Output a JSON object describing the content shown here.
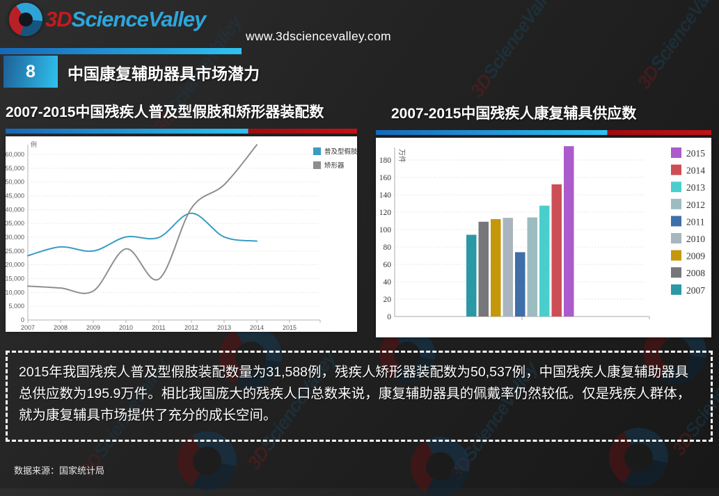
{
  "header": {
    "logo_3d": "3D",
    "logo_name": "ScienceValley",
    "website": "www.3dsciencevalley.com",
    "page_number": "8",
    "page_title": "中国康复辅助器具市场潜力"
  },
  "watermark": {
    "text_3d": "3D",
    "text_name": "ScienceValley"
  },
  "chart_data": [
    {
      "type": "line",
      "title": "2007-2015中国残疾人普及型假肢和矫形器装配数",
      "ylabel": "例",
      "x": [
        2007,
        2008,
        2009,
        2010,
        2011,
        2012,
        2013,
        2014,
        2015
      ],
      "series": [
        {
          "name": "普及型假肢",
          "color": "#3A9CC4",
          "values": [
            23300,
            26500,
            25000,
            30100,
            29900,
            38700,
            30100,
            28600
          ]
        },
        {
          "name": "矫形器",
          "color": "#8E8E8E",
          "values": [
            12300,
            11600,
            10500,
            25800,
            14800,
            40500,
            49000,
            63500
          ]
        }
      ],
      "ylim": [
        0,
        60000
      ],
      "ytick": 5000,
      "grid": true,
      "legend_position": "top-right",
      "note": "curves plotted 2007 through 2014; x axis labeled to 2015"
    },
    {
      "type": "bar",
      "title": "2007-2015中国残疾人康复辅具供应数",
      "ylabel": "万件",
      "categories": [
        "2007",
        "2008",
        "2009",
        "2010",
        "2011",
        "2012",
        "2013",
        "2014",
        "2015"
      ],
      "values": [
        94,
        109,
        112,
        113.5,
        74,
        114,
        127.5,
        152,
        195.9
      ],
      "colors": [
        "#2B98A5",
        "#77777B",
        "#C5970B",
        "#A9B5BE",
        "#3E6FA8",
        "#9CBCC0",
        "#49CECC",
        "#CC4F55",
        "#AB5BCB"
      ],
      "ylim": [
        0,
        180
      ],
      "ytick": 20,
      "grid": true,
      "legend_position": "right",
      "legend_order": "2015 at top, descending to 2007"
    }
  ],
  "summary": {
    "text": "2015年我国残疾人普及型假肢装配数量为31,588例，残疾人矫形器装配数为50,537例，中国残疾人康复辅助器具总供应数为195.9万件。相比我国庞大的残疾人口总数来说，康复辅助器具的佩戴率仍然较低。仅是残疾人群体，就为康复辅具市场提供了充分的成长空间。"
  },
  "footer": {
    "source": "数据来源：国家统计局"
  },
  "colors": {
    "accent_blue": "#2FC2F1",
    "accent_red": "#C21217",
    "line_blue": "#3A9CC4",
    "line_gray": "#8E8E8E"
  }
}
